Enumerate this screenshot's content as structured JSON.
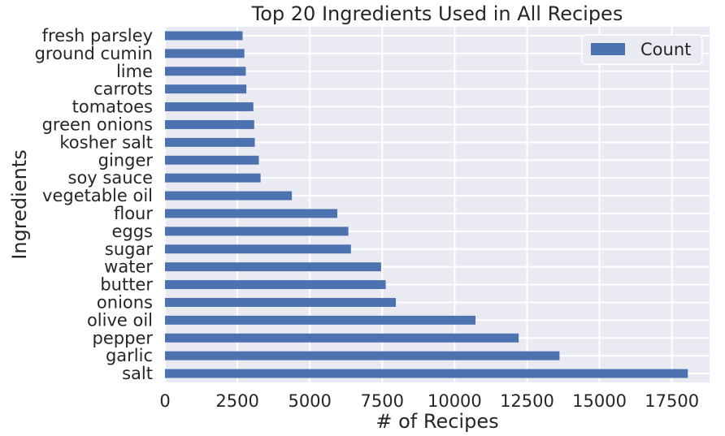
{
  "chart_data": {
    "type": "bar",
    "orientation": "horizontal",
    "title": "Top 20 Ingredients Used in All Recipes",
    "xlabel": "# of Recipes",
    "ylabel": "Ingredients",
    "xlim": [
      0,
      18800
    ],
    "xticks": [
      0,
      2500,
      5000,
      7500,
      10000,
      12500,
      15000,
      17500
    ],
    "grid": true,
    "legend": {
      "position": "top-right",
      "entries": [
        "Count"
      ]
    },
    "bar_color": "#4c72b0",
    "background_color": "#eaeaf2",
    "categories": [
      "salt",
      "garlic",
      "pepper",
      "olive oil",
      "onions",
      "butter",
      "water",
      "sugar",
      "eggs",
      "flour",
      "vegetable oil",
      "soy sauce",
      "ginger",
      "kosher salt",
      "green onions",
      "tomatoes",
      "carrots",
      "lime",
      "ground cumin",
      "fresh parsley"
    ],
    "series": [
      {
        "name": "Count",
        "values": [
          18050,
          13620,
          12210,
          10720,
          7970,
          7620,
          7460,
          6420,
          6330,
          5950,
          4380,
          3300,
          3240,
          3100,
          3080,
          3050,
          2810,
          2790,
          2740,
          2680
        ]
      }
    ]
  }
}
